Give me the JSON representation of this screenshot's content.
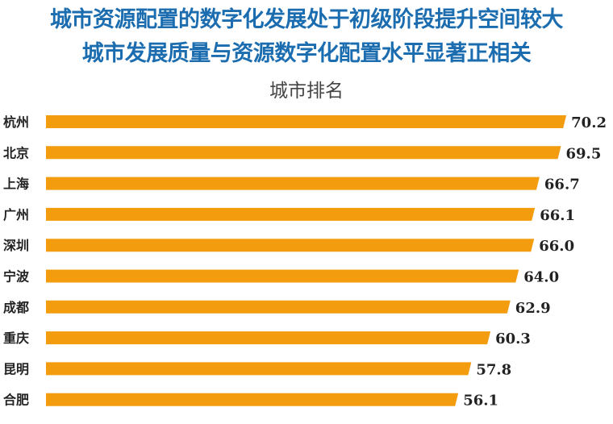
{
  "chart_data": {
    "type": "bar",
    "orientation": "horizontal",
    "title": "城市资源配置的数字化发展处于初级阶段提升空间较大",
    "subtitle": "城市发展质量与资源数字化配置水平显著正相关",
    "chart_label": "城市排名",
    "categories": [
      "杭州",
      "北京",
      "上海",
      "广州",
      "深圳",
      "宁波",
      "成都",
      "重庆",
      "昆明",
      "合肥"
    ],
    "values": [
      70.2,
      69.5,
      66.7,
      66.1,
      66.0,
      64.0,
      62.9,
      60.3,
      57.8,
      56.1
    ],
    "value_labels": [
      "70.2",
      "69.5",
      "66.7",
      "66.1",
      "66.0",
      "64.0",
      "62.9",
      "60.3",
      "57.8",
      "56.1"
    ],
    "xlabel": "",
    "ylabel": "",
    "grid": false,
    "colors": {
      "bar": "#f29c0e",
      "title": "#1b6db0"
    }
  }
}
